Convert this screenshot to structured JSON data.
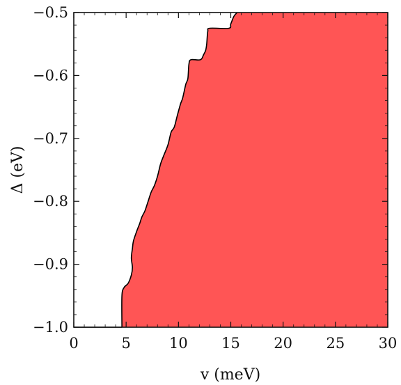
{
  "chart_data": {
    "type": "area",
    "xlabel": "v (meV)",
    "ylabel": "Δ (eV)",
    "xlim": [
      0,
      30
    ],
    "ylim": [
      -1.0,
      -0.5
    ],
    "xticks": [
      0,
      5,
      10,
      15,
      20,
      25,
      30
    ],
    "xtick_labels": [
      "0",
      "5",
      "10",
      "15",
      "20",
      "25",
      "30"
    ],
    "yticks": [
      -1.0,
      -0.9,
      -0.8,
      -0.7,
      -0.6,
      -0.5
    ],
    "ytick_labels": [
      "−1.0",
      "−0.9",
      "−0.8",
      "−0.7",
      "−0.6",
      "−0.5"
    ],
    "fill_color": "#ff5555",
    "boundary_color": "#000000",
    "boundary": {
      "x": [
        15.6,
        15.3,
        15.0,
        14.8,
        13.0,
        12.8,
        12.7,
        12.6,
        12.4,
        12.1,
        11.2,
        11.0,
        10.9,
        10.7,
        10.4,
        10.2,
        9.9,
        9.6,
        9.3,
        9.0,
        8.6,
        8.3,
        8.0,
        7.7,
        7.4,
        7.1,
        6.8,
        6.5,
        6.3,
        6.0,
        5.7,
        5.6,
        5.5,
        5.6,
        5.5,
        5.2,
        4.8,
        4.6,
        4.6
      ],
      "y": [
        -0.5,
        -0.506,
        -0.518,
        -0.525,
        -0.525,
        -0.53,
        -0.55,
        -0.56,
        -0.567,
        -0.575,
        -0.575,
        -0.582,
        -0.605,
        -0.614,
        -0.636,
        -0.645,
        -0.663,
        -0.682,
        -0.69,
        -0.71,
        -0.727,
        -0.74,
        -0.76,
        -0.775,
        -0.785,
        -0.8,
        -0.815,
        -0.825,
        -0.835,
        -0.848,
        -0.863,
        -0.875,
        -0.89,
        -0.905,
        -0.917,
        -0.93,
        -0.937,
        -0.95,
        -1.0
      ]
    },
    "bottom_edge": {
      "x": [
        0,
        4.6
      ],
      "y": [
        -1.0,
        -1.0
      ]
    }
  }
}
